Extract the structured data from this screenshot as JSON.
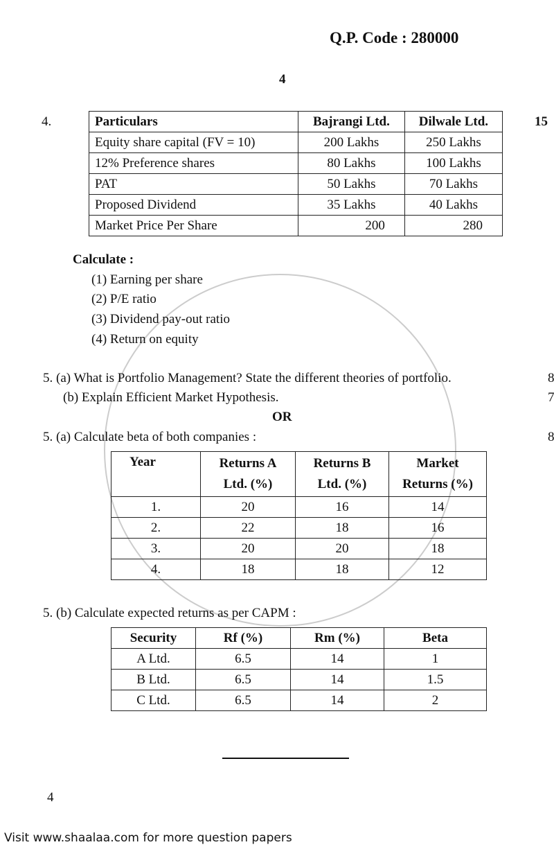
{
  "header": {
    "qp_code": "Q.P. Code : 280000",
    "page_number": "4"
  },
  "q4": {
    "number": "4.",
    "marks": "15",
    "headers": [
      "Particulars",
      "Bajrangi Ltd.",
      "Dilwale Ltd."
    ],
    "rows": [
      [
        "Equity share capital (FV = 10)",
        "200 Lakhs",
        "250 Lakhs"
      ],
      [
        "12% Preference shares",
        "80 Lakhs",
        "100 Lakhs"
      ],
      [
        "PAT",
        "50 Lakhs",
        "70 Lakhs"
      ],
      [
        "Proposed Dividend",
        "35 Lakhs",
        "40 Lakhs"
      ],
      [
        "Market Price Per Share",
        "200",
        "280"
      ]
    ],
    "calculate_label": "Calculate :",
    "items": [
      "(1)  Earning per share",
      "(2)  P/E ratio",
      "(3)  Dividend pay-out ratio",
      "(4)  Return on equity"
    ]
  },
  "q5": {
    "a_text": "5.  (a)  What is Portfolio Management? State the different theories of portfolio.",
    "a_marks": "8",
    "b_text": "(b)  Explain Efficient Market Hypothesis.",
    "b_marks": "7",
    "or": "OR",
    "alt_a_text": "5.  (a)  Calculate beta of both companies :",
    "alt_a_marks": "8",
    "beta_headers": [
      "Year",
      "Returns A Ltd. (%)",
      "Returns B Ltd. (%)",
      "Market Returns (%)"
    ],
    "beta_rows": [
      [
        "1.",
        "20",
        "16",
        "14"
      ],
      [
        "2.",
        "22",
        "18",
        "16"
      ],
      [
        "3.",
        "20",
        "20",
        "18"
      ],
      [
        "4.",
        "18",
        "18",
        "12"
      ]
    ],
    "alt_b_text": "5.  (b)  Calculate expected returns as per CAPM :",
    "capm_headers": [
      "Security",
      "Rf (%)",
      "Rm (%)",
      "Beta"
    ],
    "capm_rows": [
      [
        "A Ltd.",
        "6.5",
        "14",
        "1"
      ],
      [
        "B Ltd.",
        "6.5",
        "14",
        "1.5"
      ],
      [
        "C Ltd.",
        "6.5",
        "14",
        "2"
      ]
    ]
  },
  "footer": {
    "page_number": "4",
    "note": "Visit www.shaalaa.com for more question papers"
  },
  "watermark": "shaalaa.com"
}
